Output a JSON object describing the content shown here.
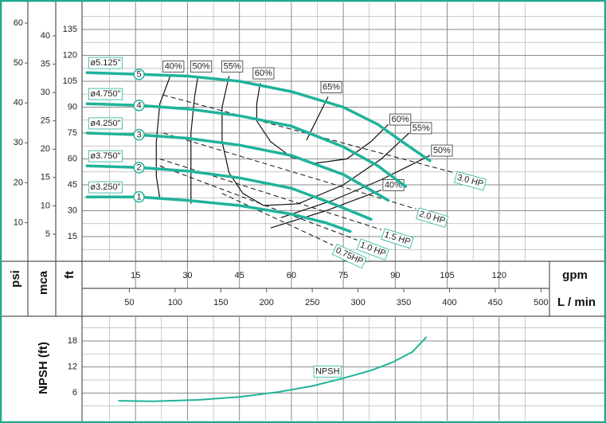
{
  "chart_data": [
    {
      "type": "pump-curve",
      "y_label_psi": "psi",
      "y_label_mca": "mca",
      "y_label_ft": "ft",
      "x_label": "gpm",
      "x2_label": "L / min",
      "ylim": [
        0,
        150
      ],
      "yticks": [
        15,
        30,
        45,
        60,
        75,
        90,
        105,
        120,
        135
      ],
      "psi_lim": [
        0,
        64.9
      ],
      "psi_ticks": [
        10,
        20,
        30,
        40,
        50,
        60
      ],
      "mca_lim": [
        0,
        45.7
      ],
      "mca_ticks": [
        5,
        10,
        15,
        20,
        25,
        30,
        35,
        40
      ],
      "xlim": [
        0,
        135
      ],
      "xticks": [
        15,
        30,
        45,
        60,
        75,
        90,
        105,
        120
      ],
      "x2lim": [
        0,
        511
      ],
      "x2ticks": [
        50,
        100,
        150,
        200,
        250,
        300,
        350,
        400,
        450,
        500
      ],
      "color": "#1fb39a",
      "grid": true,
      "series": [
        {
          "name": "ø5.125\"",
          "marker": "5",
          "x": [
            1,
            16,
            30,
            45,
            60,
            75,
            85,
            92,
            100
          ],
          "values": [
            110,
            109,
            108,
            105,
            99,
            90,
            80,
            70,
            59
          ]
        },
        {
          "name": "ø4.750\"",
          "marker": "4",
          "x": [
            1,
            16,
            30,
            45,
            60,
            75,
            85,
            93
          ],
          "values": [
            92,
            91,
            89,
            85,
            79,
            67,
            56,
            44
          ]
        },
        {
          "name": "ø4.250\"",
          "marker": "3",
          "x": [
            1,
            16,
            30,
            45,
            60,
            75,
            82,
            88
          ],
          "values": [
            75,
            74,
            72,
            68,
            62,
            51,
            43,
            36
          ]
        },
        {
          "name": "ø3.750\"",
          "marker": "2",
          "x": [
            1,
            16,
            30,
            45,
            60,
            72,
            83
          ],
          "values": [
            56,
            55,
            53,
            49,
            43,
            34,
            25
          ]
        },
        {
          "name": "ø3.250\"",
          "marker": "1",
          "x": [
            1,
            16,
            30,
            45,
            60,
            70,
            77
          ],
          "values": [
            38,
            38,
            36,
            33,
            28,
            23,
            18
          ]
        }
      ],
      "efficiency": [
        {
          "label_start": "40%",
          "label_end": "40%",
          "x": [
            25,
            22,
            21,
            21,
            22,
            null,
            54,
            70,
            86
          ],
          "values": [
            108,
            92,
            70,
            50,
            37,
            null,
            20,
            30,
            42
          ]
        },
        {
          "label_start": "50%",
          "label_end": "50%",
          "x": [
            33,
            32,
            31,
            31,
            31,
            null,
            57,
            72,
            86,
            100
          ],
          "values": [
            108,
            95,
            75,
            55,
            34,
            null,
            26,
            36,
            48,
            62
          ]
        },
        {
          "label_start": "55%",
          "label_end": "55%",
          "x": [
            42,
            40,
            40,
            42,
            46,
            52,
            62,
            75,
            86,
            94
          ],
          "values": [
            108,
            90,
            70,
            52,
            40,
            33,
            34,
            45,
            60,
            75
          ]
        },
        {
          "label_start": "60%",
          "label_end": "60%",
          "x": [
            51,
            50,
            50,
            54,
            60,
            67,
            76,
            83,
            88
          ],
          "values": [
            104,
            92,
            82,
            70,
            61,
            57.5,
            60,
            70,
            80
          ]
        },
        {
          "label_start": "65%",
          "x": [
            70.6,
            64.4
          ],
          "values": [
            96,
            71
          ]
        }
      ],
      "power": [
        {
          "name": "3.0 HP",
          "x": [
            23,
            107
          ],
          "values": [
            97,
            52
          ]
        },
        {
          "name": "2.0 HP",
          "x": [
            23,
            96
          ],
          "values": [
            75,
            31
          ]
        },
        {
          "name": "1.5 HP",
          "x": [
            22,
            86
          ],
          "values": [
            60,
            19
          ]
        },
        {
          "name": "1.0 HP",
          "x": [
            22,
            79
          ],
          "values": [
            56,
            13
          ]
        },
        {
          "name": "0.75HP",
          "x": [
            40,
            72
          ],
          "values": [
            40,
            10
          ]
        }
      ]
    },
    {
      "type": "line",
      "y_label": "NPSH (ft)",
      "ylim": [
        0,
        23.5
      ],
      "yticks": [
        6,
        12,
        18
      ],
      "xlim": [
        0,
        135
      ],
      "grid": true,
      "series": [
        {
          "name": "NPSH",
          "color": "#1fb39a",
          "x": [
            10,
            20,
            33,
            45,
            56,
            66,
            75,
            83,
            89,
            95,
            99
          ],
          "values": [
            4.2,
            4.1,
            4.4,
            5.1,
            6.2,
            7.6,
            9.4,
            11.2,
            13,
            15.5,
            18.9
          ]
        }
      ]
    }
  ]
}
